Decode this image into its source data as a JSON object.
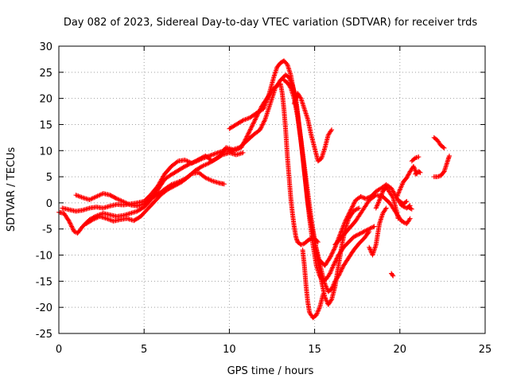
{
  "chart_data": {
    "type": "scatter",
    "title": "Day 082 of 2023, Sidereal Day-to-day VTEC variation (SDTVAR) for receiver trds",
    "xlabel": "GPS time / hours",
    "ylabel": "SDTVAR / TECUs",
    "xlim": [
      0,
      25
    ],
    "ylim": [
      -25,
      30
    ],
    "xticks": [
      0,
      5,
      10,
      15,
      20,
      25
    ],
    "yticks": [
      -25,
      -20,
      -15,
      -10,
      -5,
      0,
      5,
      10,
      15,
      20,
      25,
      30
    ],
    "grid": true,
    "marker": "plus",
    "color": "#ff0000",
    "series": [
      {
        "points": [
          [
            0.0,
            -1.8
          ],
          [
            0.3,
            -2.0
          ],
          [
            0.6,
            -3.5
          ],
          [
            0.9,
            -5.5
          ],
          [
            1.1,
            -5.8
          ],
          [
            1.4,
            -4.5
          ],
          [
            1.8,
            -3.2
          ],
          [
            2.2,
            -2.5
          ],
          [
            2.6,
            -2.0
          ],
          [
            3.0,
            -2.3
          ],
          [
            3.4,
            -2.6
          ],
          [
            3.8,
            -2.4
          ],
          [
            4.2,
            -2.0
          ],
          [
            4.6,
            -1.6
          ],
          [
            5.0,
            -0.8
          ],
          [
            5.3,
            0.2
          ],
          [
            5.6,
            1.5
          ],
          [
            5.9,
            3.0
          ],
          [
            6.2,
            4.5
          ],
          [
            6.5,
            5.2
          ],
          [
            6.9,
            6.0
          ],
          [
            7.3,
            6.8
          ],
          [
            7.7,
            7.5
          ],
          [
            8.1,
            8.0
          ],
          [
            8.5,
            8.6
          ],
          [
            9.0,
            9.2
          ],
          [
            9.5,
            9.8
          ],
          [
            9.9,
            10.2
          ],
          [
            10.3,
            10.0
          ],
          [
            10.7,
            10.6
          ],
          [
            11.0,
            12.5
          ],
          [
            11.3,
            14.5
          ],
          [
            11.6,
            16.5
          ],
          [
            11.9,
            18.5
          ],
          [
            12.2,
            20.0
          ],
          [
            12.5,
            21.5
          ],
          [
            12.8,
            22.5
          ],
          [
            13.0,
            22.8
          ],
          [
            13.1,
            21.0
          ],
          [
            13.2,
            18.0
          ],
          [
            13.3,
            14.0
          ],
          [
            13.4,
            9.0
          ],
          [
            13.5,
            5.0
          ],
          [
            13.6,
            1.0
          ],
          [
            13.7,
            -2.0
          ],
          [
            13.8,
            -4.5
          ],
          [
            13.9,
            -6.5
          ],
          [
            14.0,
            -7.5
          ],
          [
            14.2,
            -8.0
          ],
          [
            14.4,
            -7.8
          ],
          [
            14.6,
            -7.2
          ],
          [
            14.8,
            -6.8
          ],
          [
            15.0,
            -6.8
          ],
          [
            15.2,
            -7.5
          ]
        ]
      },
      {
        "points": [
          [
            0.2,
            -1.0
          ],
          [
            0.6,
            -1.3
          ],
          [
            1.0,
            -1.6
          ],
          [
            1.4,
            -1.4
          ],
          [
            1.8,
            -1.0
          ],
          [
            2.2,
            -0.8
          ],
          [
            2.6,
            -1.0
          ],
          [
            3.0,
            -0.6
          ],
          [
            3.4,
            -0.3
          ],
          [
            3.8,
            -0.4
          ],
          [
            4.2,
            -0.2
          ],
          [
            4.6,
            0.0
          ],
          [
            5.0,
            0.3
          ],
          [
            5.4,
            1.6
          ],
          [
            5.8,
            3.2
          ],
          [
            6.2,
            5.5
          ],
          [
            6.6,
            7.0
          ],
          [
            7.0,
            8.0
          ],
          [
            7.4,
            8.2
          ],
          [
            7.8,
            7.6
          ],
          [
            8.2,
            8.3
          ],
          [
            8.6,
            9.0
          ],
          [
            9.0,
            8.0
          ],
          [
            9.4,
            8.8
          ],
          [
            9.8,
            10.6
          ],
          [
            10.2,
            10.2
          ],
          [
            10.6,
            10.6
          ],
          [
            11.0,
            11.8
          ],
          [
            11.4,
            13.0
          ],
          [
            11.8,
            14.0
          ],
          [
            12.1,
            16.0
          ],
          [
            12.4,
            19.0
          ],
          [
            12.7,
            22.0
          ],
          [
            13.0,
            23.5
          ],
          [
            13.3,
            24.5
          ],
          [
            13.5,
            24.0
          ],
          [
            13.7,
            22.5
          ],
          [
            13.9,
            20.0
          ],
          [
            14.1,
            14.5
          ],
          [
            14.3,
            9.0
          ],
          [
            14.5,
            3.0
          ],
          [
            14.7,
            -3.0
          ],
          [
            14.9,
            -8.0
          ],
          [
            15.1,
            -12.0
          ],
          [
            15.3,
            -14.0
          ],
          [
            15.5,
            -15.0
          ],
          [
            15.7,
            -14.5
          ],
          [
            15.9,
            -13.5
          ],
          [
            16.1,
            -12.0
          ],
          [
            16.4,
            -10.0
          ],
          [
            16.7,
            -8.5
          ],
          [
            17.0,
            -7.5
          ],
          [
            17.3,
            -6.5
          ],
          [
            17.6,
            -6.0
          ],
          [
            17.9,
            -5.5
          ],
          [
            18.2,
            -5.0
          ],
          [
            18.5,
            -4.5
          ]
        ]
      },
      {
        "points": [
          [
            1.0,
            1.5
          ],
          [
            1.4,
            1.0
          ],
          [
            1.8,
            0.6
          ],
          [
            2.2,
            1.2
          ],
          [
            2.6,
            1.8
          ],
          [
            3.0,
            1.5
          ],
          [
            3.4,
            0.8
          ],
          [
            3.8,
            0.2
          ],
          [
            4.2,
            -0.4
          ],
          [
            4.6,
            -0.6
          ],
          [
            5.0,
            -0.2
          ],
          [
            5.4,
            0.8
          ],
          [
            5.8,
            1.6
          ],
          [
            6.2,
            2.6
          ],
          [
            6.6,
            3.5
          ],
          [
            7.0,
            4.0
          ],
          [
            7.4,
            4.6
          ],
          [
            7.8,
            5.6
          ],
          [
            8.2,
            5.8
          ],
          [
            8.6,
            4.8
          ],
          [
            9.0,
            4.2
          ],
          [
            9.4,
            3.8
          ],
          [
            9.7,
            3.6
          ]
        ]
      },
      {
        "points": [
          [
            1.6,
            -4.0
          ],
          [
            2.0,
            -3.2
          ],
          [
            2.4,
            -2.6
          ],
          [
            2.8,
            -3.0
          ],
          [
            3.2,
            -3.5
          ],
          [
            3.6,
            -3.2
          ],
          [
            4.0,
            -3.0
          ],
          [
            4.4,
            -3.4
          ],
          [
            4.8,
            -2.6
          ],
          [
            5.2,
            -1.2
          ],
          [
            5.6,
            0.2
          ],
          [
            6.0,
            1.6
          ],
          [
            6.4,
            2.6
          ],
          [
            6.8,
            3.3
          ],
          [
            7.2,
            4.0
          ],
          [
            7.6,
            5.0
          ],
          [
            8.0,
            6.2
          ],
          [
            8.4,
            7.0
          ],
          [
            8.8,
            7.6
          ],
          [
            9.2,
            8.4
          ],
          [
            9.6,
            9.2
          ],
          [
            10.0,
            9.6
          ],
          [
            10.4,
            9.2
          ],
          [
            10.8,
            9.6
          ]
        ]
      },
      {
        "points": [
          [
            10.0,
            14.2
          ],
          [
            10.4,
            15.0
          ],
          [
            10.8,
            15.8
          ],
          [
            11.2,
            16.3
          ],
          [
            11.6,
            17.2
          ],
          [
            12.0,
            18.0
          ],
          [
            12.3,
            20.5
          ],
          [
            12.6,
            24.0
          ],
          [
            12.8,
            26.0
          ],
          [
            13.0,
            26.8
          ],
          [
            13.2,
            27.2
          ],
          [
            13.4,
            26.5
          ],
          [
            13.6,
            24.5
          ],
          [
            13.8,
            21.0
          ],
          [
            14.0,
            17.0
          ],
          [
            14.2,
            12.0
          ],
          [
            14.4,
            6.0
          ],
          [
            14.6,
            0.0
          ],
          [
            14.8,
            -4.0
          ],
          [
            15.0,
            -7.5
          ],
          [
            15.2,
            -10.0
          ],
          [
            15.4,
            -13.0
          ],
          [
            15.6,
            -15.5
          ],
          [
            15.8,
            -17.0
          ],
          [
            16.0,
            -16.5
          ],
          [
            16.2,
            -15.0
          ],
          [
            16.4,
            -14.0
          ],
          [
            16.7,
            -12.0
          ],
          [
            17.0,
            -10.5
          ],
          [
            17.3,
            -9.0
          ],
          [
            17.6,
            -7.8
          ],
          [
            17.9,
            -6.8
          ],
          [
            18.2,
            -5.5
          ]
        ]
      },
      {
        "points": [
          [
            13.2,
            23.5
          ],
          [
            13.4,
            23.0
          ],
          [
            13.6,
            22.0
          ],
          [
            13.8,
            20.0
          ],
          [
            14.0,
            16.5
          ],
          [
            14.2,
            12.0
          ],
          [
            14.4,
            7.0
          ],
          [
            14.6,
            2.0
          ],
          [
            14.8,
            -3.0
          ],
          [
            15.0,
            -7.0
          ],
          [
            15.2,
            -11.0
          ],
          [
            15.4,
            -15.0
          ],
          [
            15.6,
            -18.0
          ],
          [
            15.8,
            -19.5
          ],
          [
            16.0,
            -18.5
          ],
          [
            16.2,
            -16.0
          ],
          [
            16.4,
            -12.0
          ],
          [
            16.6,
            -8.0
          ],
          [
            16.8,
            -5.0
          ],
          [
            17.0,
            -3.0
          ],
          [
            17.3,
            -1.5
          ],
          [
            17.6,
            -1.0
          ]
        ]
      },
      {
        "points": [
          [
            13.8,
            19.0
          ],
          [
            14.0,
            21.0
          ],
          [
            14.2,
            20.0
          ],
          [
            14.4,
            18.0
          ],
          [
            14.6,
            16.0
          ],
          [
            14.8,
            13.0
          ],
          [
            15.0,
            10.5
          ],
          [
            15.2,
            8.0
          ],
          [
            15.4,
            8.5
          ],
          [
            15.6,
            10.5
          ],
          [
            15.8,
            13.0
          ],
          [
            16.0,
            14.0
          ]
        ]
      },
      {
        "points": [
          [
            14.3,
            -9.0
          ],
          [
            14.4,
            -12.0
          ],
          [
            14.5,
            -16.0
          ],
          [
            14.6,
            -19.0
          ],
          [
            14.7,
            -21.0
          ],
          [
            14.9,
            -22.0
          ],
          [
            15.1,
            -21.5
          ],
          [
            15.3,
            -20.0
          ],
          [
            15.5,
            -17.5
          ]
        ]
      },
      {
        "points": [
          [
            15.3,
            -11.0
          ],
          [
            15.6,
            -12.0
          ],
          [
            15.9,
            -10.5
          ],
          [
            16.2,
            -8.5
          ],
          [
            16.5,
            -6.0
          ],
          [
            16.8,
            -3.5
          ],
          [
            17.1,
            -1.5
          ],
          [
            17.4,
            0.5
          ],
          [
            17.7,
            1.2
          ],
          [
            18.0,
            0.8
          ],
          [
            18.3,
            1.2
          ],
          [
            18.6,
            2.2
          ],
          [
            18.9,
            2.8
          ],
          [
            19.2,
            3.5
          ],
          [
            19.5,
            2.8
          ],
          [
            19.8,
            1.0
          ],
          [
            20.1,
            -0.5
          ],
          [
            20.4,
            -1.0
          ],
          [
            20.6,
            -0.5
          ]
        ]
      },
      {
        "points": [
          [
            16.2,
            -8.0
          ],
          [
            16.6,
            -6.5
          ],
          [
            17.0,
            -5.0
          ],
          [
            17.4,
            -3.5
          ],
          [
            17.8,
            -1.5
          ],
          [
            18.2,
            0.5
          ],
          [
            18.6,
            1.5
          ],
          [
            19.0,
            1.2
          ],
          [
            19.4,
            0.0
          ],
          [
            19.8,
            -2.0
          ],
          [
            20.1,
            -3.5
          ],
          [
            20.4,
            -4.0
          ],
          [
            20.6,
            -3.0
          ]
        ]
      },
      {
        "points": [
          [
            18.6,
            -1.0
          ],
          [
            18.8,
            0.5
          ],
          [
            19.0,
            2.2
          ],
          [
            19.2,
            3.0
          ],
          [
            19.4,
            2.0
          ],
          [
            19.6,
            1.0
          ],
          [
            19.8,
            -1.5
          ],
          [
            19.9,
            -3.0
          ]
        ]
      },
      {
        "points": [
          [
            19.5,
            -13.5
          ],
          [
            19.6,
            -14.0
          ]
        ]
      },
      {
        "points": [
          [
            18.2,
            -8.5
          ],
          [
            18.4,
            -10.0
          ],
          [
            18.6,
            -8.0
          ],
          [
            18.8,
            -4.0
          ],
          [
            19.0,
            -2.0
          ],
          [
            19.2,
            -1.0
          ]
        ]
      },
      {
        "points": [
          [
            19.8,
            1.0
          ],
          [
            20.0,
            2.5
          ],
          [
            20.2,
            4.0
          ],
          [
            20.4,
            4.8
          ],
          [
            20.6,
            6.0
          ],
          [
            20.8,
            7.0
          ],
          [
            21.0,
            5.5
          ]
        ]
      },
      {
        "points": [
          [
            20.7,
            8.0
          ],
          [
            20.9,
            8.6
          ],
          [
            21.1,
            8.8
          ]
        ]
      },
      {
        "points": [
          [
            20.9,
            5.5
          ],
          [
            21.1,
            6.0
          ],
          [
            21.2,
            5.8
          ]
        ]
      },
      {
        "points": [
          [
            20.5,
            -0.8
          ],
          [
            20.7,
            -1.2
          ]
        ]
      },
      {
        "points": [
          [
            20.0,
            0.3
          ],
          [
            20.2,
            -0.2
          ],
          [
            20.4,
            0.3
          ]
        ]
      },
      {
        "points": [
          [
            22.0,
            12.5
          ],
          [
            22.2,
            12.0
          ],
          [
            22.4,
            11.0
          ],
          [
            22.6,
            10.5
          ]
        ]
      },
      {
        "points": [
          [
            22.0,
            5.0
          ],
          [
            22.2,
            5.0
          ],
          [
            22.4,
            5.2
          ],
          [
            22.6,
            6.0
          ],
          [
            22.8,
            8.0
          ],
          [
            22.9,
            9.0
          ]
        ]
      }
    ]
  }
}
